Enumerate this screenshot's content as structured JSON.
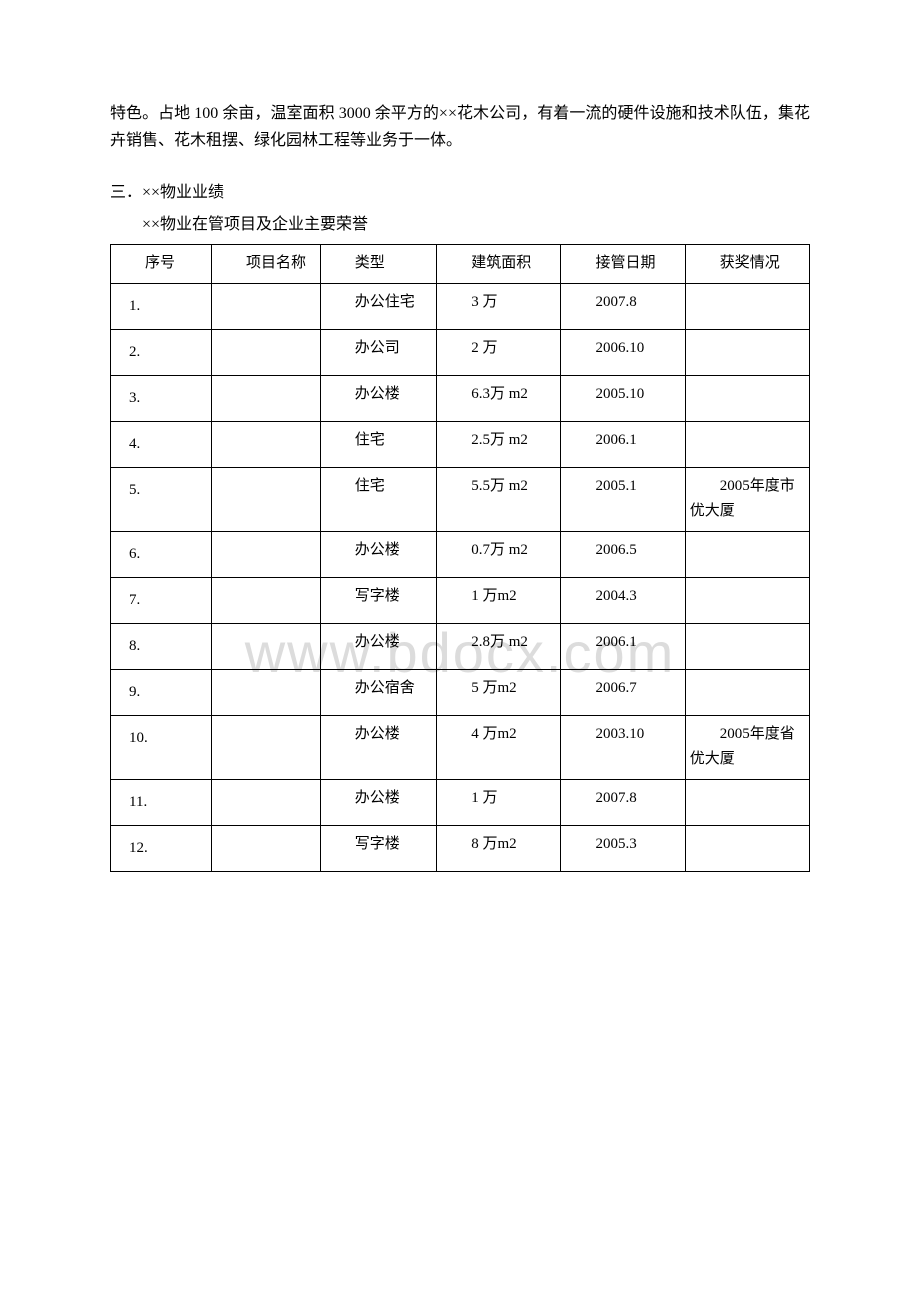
{
  "intro_paragraph": "特色。占地 100 余亩，温室面积 3000 余平方的××花木公司，有着一流的硬件设施和技术队伍，集花卉销售、花木租摆、绿化园林工程等业务于一体。",
  "section_title": "三．××物业业绩",
  "subtitle": "××物业在管项目及企业主要荣誉",
  "watermark_text": "www.bdocx.com",
  "table": {
    "columns": [
      "序号",
      "项目名称",
      "类型",
      "建筑面积",
      "接管日期",
      "获奖情况"
    ],
    "col_widths": [
      "13%",
      "14%",
      "15%",
      "16%",
      "16%",
      "16%"
    ],
    "rows": [
      [
        "1.",
        "",
        "办公住宅",
        "3 万",
        "2007.8",
        ""
      ],
      [
        "2.",
        "",
        "办公司",
        "2 万",
        "2006.10",
        ""
      ],
      [
        "3.",
        "",
        "办公楼",
        "6.3万 m2",
        "2005.10",
        ""
      ],
      [
        "4.",
        "",
        "住宅",
        "2.5万 m2",
        "2006.1",
        ""
      ],
      [
        "5.",
        "",
        "住宅",
        "5.5万 m2",
        "2005.1",
        "2005年度市优大厦"
      ],
      [
        "6.",
        "",
        "办公楼",
        "0.7万 m2",
        "2006.5",
        ""
      ],
      [
        "7.",
        "",
        "写字楼",
        "1 万m2",
        "2004.3",
        ""
      ],
      [
        "8.",
        "",
        "办公楼",
        "2.8万 m2",
        "2006.1",
        ""
      ],
      [
        "9.",
        "",
        "办公宿舍",
        "5 万m2",
        "2006.7",
        ""
      ],
      [
        "10.",
        "",
        "办公楼",
        "4 万m2",
        "2003.10",
        "2005年度省优大厦"
      ],
      [
        "11.",
        "",
        "办公楼",
        "1 万",
        "2007.8",
        ""
      ],
      [
        "12.",
        "",
        "写字楼",
        "8 万m2",
        "2005.3",
        ""
      ]
    ]
  }
}
